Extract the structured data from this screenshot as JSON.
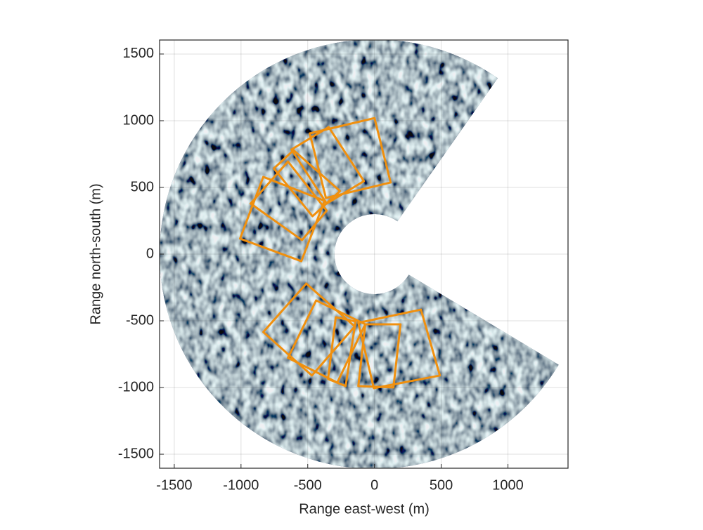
{
  "chart_data": {
    "type": "radar-sector",
    "xlabel": "Range east-west  (m)",
    "ylabel": "Range north-south  (m)",
    "xlim": [
      -1610,
      1450
    ],
    "ylim": [
      -1605,
      1605
    ],
    "xticks": [
      -1500,
      -1000,
      -500,
      0,
      500,
      1000
    ],
    "yticks": [
      -1500,
      -1000,
      -500,
      0,
      500,
      1000,
      1500
    ],
    "grid": true,
    "sector": {
      "inner_radius": 300,
      "outer_radius": 1610,
      "start_angle": -31,
      "end_angle": 55
    },
    "rect_color": "#f0900f",
    "rectangles": [
      {
        "x": [
          -1007,
          -833,
          -374,
          -548
        ],
        "y": [
          116,
          579,
          400,
          -53
        ]
      },
      {
        "x": [
          -928,
          -648,
          -358,
          -543
        ],
        "y": [
          379,
          694,
          326,
          105
        ]
      },
      {
        "x": [
          -754,
          -606,
          -258,
          -464
        ],
        "y": [
          642,
          779,
          473,
          284
        ]
      },
      {
        "x": [
          -622,
          -343,
          -79,
          -358
        ],
        "y": [
          784,
          952,
          547,
          379
        ]
      },
      {
        "x": [
          -485,
          0,
          121,
          -364
        ],
        "y": [
          905,
          1020,
          537,
          421
        ]
      },
      {
        "x": [
          -833,
          -511,
          -148,
          -469
        ],
        "y": [
          -584,
          -221,
          -542,
          -910
        ]
      },
      {
        "x": [
          -648,
          -437,
          -69,
          -279
        ],
        "y": [
          -778,
          -347,
          -526,
          -963
        ]
      },
      {
        "x": [
          -348,
          -290,
          -142,
          -216
        ],
        "y": [
          -936,
          -473,
          -505,
          -989
        ]
      },
      {
        "x": [
          -69,
          195,
          142,
          -121
        ],
        "y": [
          -526,
          -526,
          -999,
          -989
        ]
      },
      {
        "x": [
          -121,
          348,
          490,
          -5
        ],
        "y": [
          -515,
          -416,
          -910,
          -1005
        ]
      }
    ]
  }
}
